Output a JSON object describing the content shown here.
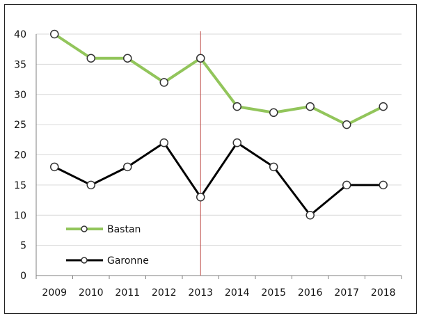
{
  "chart_data": {
    "type": "line",
    "title": "",
    "xlabel": "",
    "ylabel": "",
    "categories": [
      "2009",
      "2010",
      "2011",
      "2012",
      "2013",
      "2014",
      "2015",
      "2016",
      "2017",
      "2018"
    ],
    "ylim": [
      0,
      40
    ],
    "yticks": [
      0,
      5,
      10,
      15,
      20,
      25,
      30,
      35,
      40
    ],
    "grid": true,
    "legend_position": "bottom-left",
    "marker_line_at": "2013",
    "series": [
      {
        "name": "Bastan",
        "color": "#92c55b",
        "values": [
          40,
          36,
          36,
          32,
          36,
          28,
          27,
          28,
          25,
          28
        ]
      },
      {
        "name": "Garonne",
        "color": "#000000",
        "values": [
          18,
          15,
          18,
          22,
          13,
          22,
          18,
          10,
          15,
          15
        ]
      }
    ]
  }
}
